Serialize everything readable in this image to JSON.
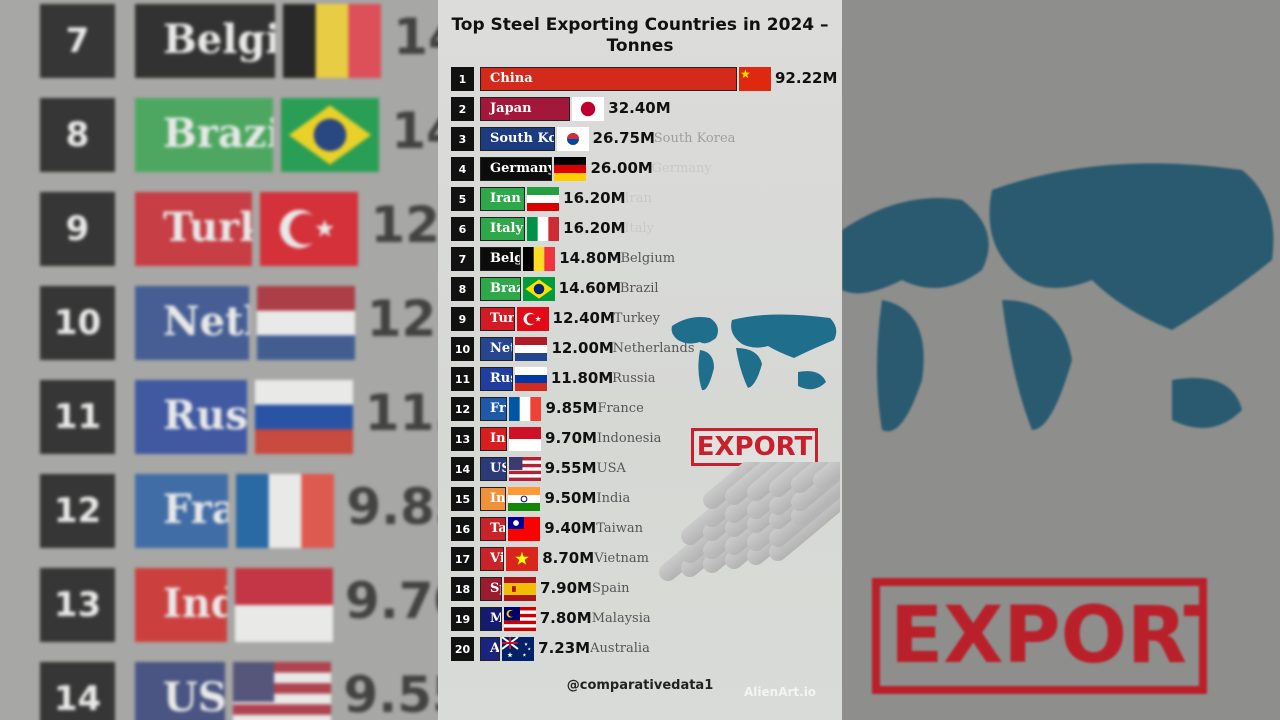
{
  "chart_data": {
    "type": "bar",
    "orientation": "horizontal",
    "title": "Top Steel Exporting Countries in 2024 – Tonnes",
    "unit_suffix": "M",
    "xlim": [
      0,
      92.22
    ],
    "grid": false,
    "rows": [
      {
        "rank": "1",
        "country": "China",
        "value": 92.22,
        "label": "92.22M",
        "color": "#d42a1c",
        "flag": "china"
      },
      {
        "rank": "2",
        "country": "Japan",
        "value": 32.4,
        "label": "32.40M",
        "color": "#a3173a",
        "flag": "japan"
      },
      {
        "rank": "3",
        "country": "South Korea",
        "value": 26.75,
        "label": "26.75M",
        "color": "#1d3c7f",
        "flag": "south-korea"
      },
      {
        "rank": "4",
        "country": "Germany",
        "value": 26.0,
        "label": "26.00M",
        "color": "#0c0c0c",
        "flag": "germany"
      },
      {
        "rank": "5",
        "country": "Iran",
        "value": 16.2,
        "label": "16.20M",
        "color": "#2fa84b",
        "flag": "iran"
      },
      {
        "rank": "6",
        "country": "Italy",
        "value": 16.2,
        "label": "16.20M",
        "color": "#2fa84b",
        "flag": "italy"
      },
      {
        "rank": "7",
        "country": "Belgium",
        "value": 14.8,
        "label": "14.80M",
        "color": "#0c0c0c",
        "flag": "belgium"
      },
      {
        "rank": "8",
        "country": "Brazil",
        "value": 14.6,
        "label": "14.60M",
        "color": "#2fa84b",
        "flag": "brazil"
      },
      {
        "rank": "9",
        "country": "Turkey",
        "value": 12.4,
        "label": "12.40M",
        "color": "#d21b25",
        "flag": "turkey"
      },
      {
        "rank": "10",
        "country": "Netherlands",
        "value": 12.0,
        "label": "12.00M",
        "color": "#26468f",
        "flag": "netherlands"
      },
      {
        "rank": "11",
        "country": "Russia",
        "value": 11.8,
        "label": "11.80M",
        "color": "#1f3fa0",
        "flag": "russia"
      },
      {
        "rank": "12",
        "country": "France",
        "value": 9.85,
        "label": "9.85M",
        "color": "#1f5aa8",
        "flag": "france"
      },
      {
        "rank": "13",
        "country": "Indonesia",
        "value": 9.7,
        "label": "9.70M",
        "color": "#d81e1e",
        "flag": "indonesia"
      },
      {
        "rank": "14",
        "country": "USA",
        "value": 9.55,
        "label": "9.55M",
        "color": "#2d3a78",
        "flag": "usa"
      },
      {
        "rank": "15",
        "country": "India",
        "value": 9.5,
        "label": "9.50M",
        "color": "#f0923c",
        "flag": "india"
      },
      {
        "rank": "16",
        "country": "Taiwan",
        "value": 9.4,
        "label": "9.40M",
        "color": "#c9242a",
        "flag": "taiwan"
      },
      {
        "rank": "17",
        "country": "Vietnam",
        "value": 8.7,
        "label": "8.70M",
        "color": "#c9242a",
        "flag": "vietnam"
      },
      {
        "rank": "18",
        "country": "Spain",
        "value": 7.9,
        "label": "7.90M",
        "color": "#9b1b30",
        "flag": "spain"
      },
      {
        "rank": "19",
        "country": "Malaysia",
        "value": 7.8,
        "label": "7.80M",
        "color": "#141a6e",
        "flag": "malaysia"
      },
      {
        "rank": "20",
        "country": "Australia",
        "value": 7.23,
        "label": "7.23M",
        "color": "#1a237e",
        "flag": "australia"
      }
    ]
  },
  "decor": {
    "stamp_text": "EXPORT",
    "map_color": "#1f6e8c",
    "stamp_color": "#c8202c"
  },
  "footer": {
    "handle": "@comparativedata1",
    "watermark": "AlienArt.io"
  }
}
